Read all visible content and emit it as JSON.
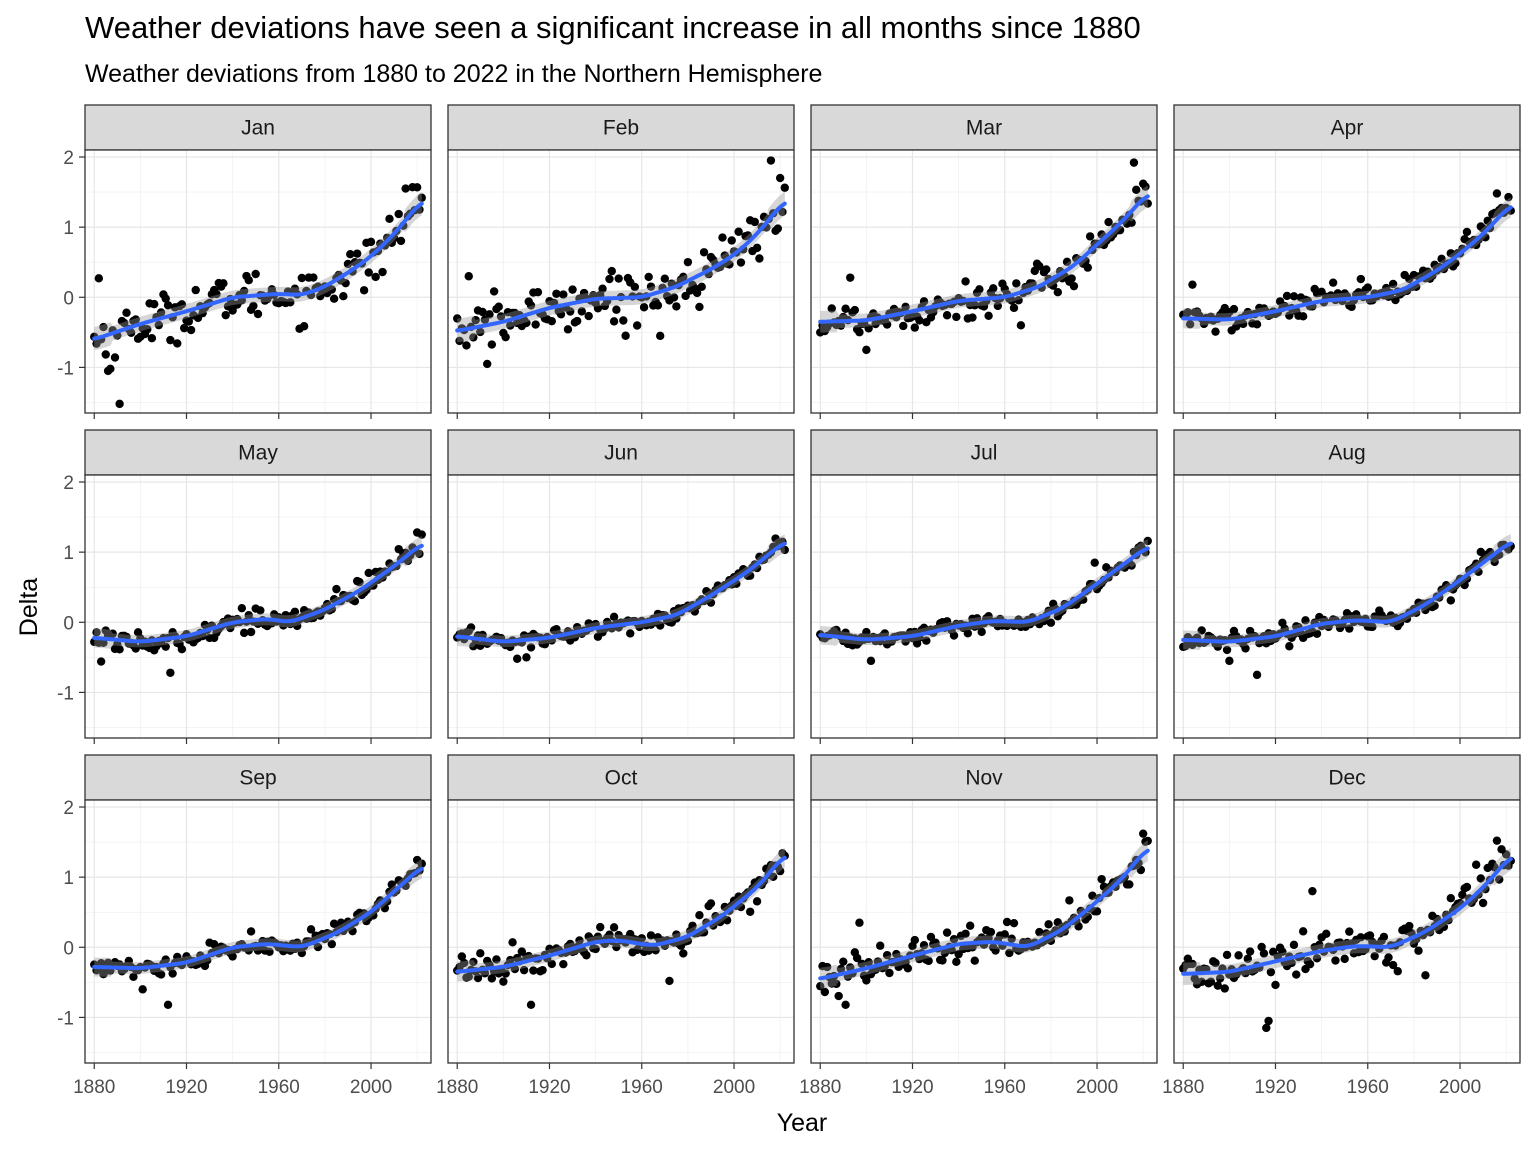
{
  "chart_data": {
    "type": "scatter",
    "title": "Weather deviations have seen a significant increase in all months since 1880",
    "subtitle": "Weather deviations from 1880 to 2022 in the Northern Hemisphere",
    "xlabel": "Year",
    "ylabel": "Delta",
    "xlim": [
      1876,
      2026
    ],
    "ylim": [
      -1.65,
      2.1
    ],
    "x_ticks": [
      1880,
      1920,
      1960,
      2000
    ],
    "y_ticks": [
      -1,
      0,
      1,
      2
    ],
    "grid": true,
    "point_color": "#000000",
    "trend_color": "#3366ff",
    "band_color": "#999999",
    "strip_fill": "#d9d9d9",
    "year_start": 1880,
    "year_end": 2022,
    "panels": [
      {
        "month": "Jan",
        "trend": [
          [
            1880,
            -0.6
          ],
          [
            1900,
            -0.38
          ],
          [
            1920,
            -0.2
          ],
          [
            1940,
            0.0
          ],
          [
            1960,
            0.05
          ],
          [
            1970,
            0.03
          ],
          [
            1980,
            0.15
          ],
          [
            1990,
            0.35
          ],
          [
            2000,
            0.58
          ],
          [
            2010,
            0.9
          ],
          [
            2022,
            1.38
          ]
        ],
        "noise": 0.28,
        "outliers": [
          [
            1891,
            -1.52
          ],
          [
            1886,
            -1.05
          ],
          [
            1887,
            -1.02
          ],
          [
            1882,
            0.27
          ],
          [
            2015,
            1.55
          ],
          [
            2018,
            1.57
          ],
          [
            1997,
            0.1
          ],
          [
            2005,
            0.36
          ]
        ]
      },
      {
        "month": "Feb",
        "trend": [
          [
            1880,
            -0.48
          ],
          [
            1900,
            -0.35
          ],
          [
            1920,
            -0.15
          ],
          [
            1940,
            -0.02
          ],
          [
            1960,
            0.0
          ],
          [
            1975,
            0.15
          ],
          [
            1990,
            0.4
          ],
          [
            2000,
            0.6
          ],
          [
            2010,
            0.9
          ],
          [
            2022,
            1.38
          ]
        ],
        "noise": 0.3,
        "outliers": [
          [
            2016,
            1.95
          ],
          [
            2020,
            1.7
          ],
          [
            2019,
            0.98
          ],
          [
            1893,
            -0.95
          ],
          [
            1885,
            0.3
          ],
          [
            1968,
            -0.55
          ]
        ]
      },
      {
        "month": "Mar",
        "trend": [
          [
            1880,
            -0.35
          ],
          [
            1900,
            -0.33
          ],
          [
            1920,
            -0.2
          ],
          [
            1940,
            -0.05
          ],
          [
            1960,
            0.0
          ],
          [
            1975,
            0.15
          ],
          [
            1990,
            0.45
          ],
          [
            2000,
            0.75
          ],
          [
            2010,
            1.05
          ],
          [
            2022,
            1.48
          ]
        ],
        "noise": 0.22,
        "outliers": [
          [
            2016,
            1.92
          ],
          [
            2020,
            1.62
          ],
          [
            1893,
            0.28
          ],
          [
            1900,
            -0.75
          ],
          [
            1967,
            -0.4
          ]
        ]
      },
      {
        "month": "Apr",
        "trend": [
          [
            1880,
            -0.3
          ],
          [
            1900,
            -0.32
          ],
          [
            1920,
            -0.2
          ],
          [
            1940,
            -0.05
          ],
          [
            1960,
            0.0
          ],
          [
            1975,
            0.1
          ],
          [
            1990,
            0.38
          ],
          [
            2000,
            0.62
          ],
          [
            2010,
            0.9
          ],
          [
            2022,
            1.32
          ]
        ],
        "noise": 0.16,
        "outliers": [
          [
            2016,
            1.48
          ],
          [
            1884,
            0.18
          ]
        ]
      },
      {
        "month": "May",
        "trend": [
          [
            1880,
            -0.22
          ],
          [
            1900,
            -0.28
          ],
          [
            1920,
            -0.2
          ],
          [
            1940,
            0.0
          ],
          [
            1955,
            0.05
          ],
          [
            1965,
            0.0
          ],
          [
            1980,
            0.18
          ],
          [
            1995,
            0.45
          ],
          [
            2010,
            0.8
          ],
          [
            2022,
            1.12
          ]
        ],
        "noise": 0.13,
        "outliers": [
          [
            1913,
            -0.72
          ],
          [
            2020,
            1.28
          ],
          [
            1883,
            -0.56
          ]
        ]
      },
      {
        "month": "Jun",
        "trend": [
          [
            1880,
            -0.2
          ],
          [
            1900,
            -0.28
          ],
          [
            1920,
            -0.22
          ],
          [
            1940,
            -0.08
          ],
          [
            1960,
            0.0
          ],
          [
            1975,
            0.1
          ],
          [
            1990,
            0.38
          ],
          [
            2005,
            0.7
          ],
          [
            2022,
            1.15
          ]
        ],
        "noise": 0.1,
        "outliers": [
          [
            1906,
            -0.52
          ],
          [
            1910,
            -0.5
          ]
        ]
      },
      {
        "month": "Jul",
        "trend": [
          [
            1880,
            -0.18
          ],
          [
            1900,
            -0.25
          ],
          [
            1920,
            -0.2
          ],
          [
            1940,
            -0.05
          ],
          [
            1955,
            0.02
          ],
          [
            1970,
            0.0
          ],
          [
            1985,
            0.2
          ],
          [
            2000,
            0.55
          ],
          [
            2022,
            1.08
          ]
        ],
        "noise": 0.1,
        "outliers": [
          [
            1902,
            -0.55
          ],
          [
            1999,
            0.85
          ]
        ]
      },
      {
        "month": "Aug",
        "trend": [
          [
            1880,
            -0.25
          ],
          [
            1900,
            -0.28
          ],
          [
            1920,
            -0.2
          ],
          [
            1940,
            -0.02
          ],
          [
            1955,
            0.03
          ],
          [
            1970,
            0.0
          ],
          [
            1985,
            0.25
          ],
          [
            2000,
            0.6
          ],
          [
            2022,
            1.15
          ]
        ],
        "noise": 0.12,
        "outliers": [
          [
            1912,
            -0.75
          ],
          [
            1900,
            -0.55
          ]
        ]
      },
      {
        "month": "Sep",
        "trend": [
          [
            1880,
            -0.28
          ],
          [
            1900,
            -0.3
          ],
          [
            1920,
            -0.22
          ],
          [
            1940,
            0.0
          ],
          [
            1955,
            0.05
          ],
          [
            1970,
            0.0
          ],
          [
            1985,
            0.2
          ],
          [
            2000,
            0.5
          ],
          [
            2022,
            1.15
          ]
        ],
        "noise": 0.12,
        "outliers": [
          [
            1912,
            -0.82
          ],
          [
            1901,
            -0.6
          ]
        ]
      },
      {
        "month": "Oct",
        "trend": [
          [
            1880,
            -0.35
          ],
          [
            1900,
            -0.28
          ],
          [
            1920,
            -0.12
          ],
          [
            1940,
            0.08
          ],
          [
            1950,
            0.1
          ],
          [
            1965,
            0.02
          ],
          [
            1980,
            0.15
          ],
          [
            1995,
            0.45
          ],
          [
            2010,
            0.85
          ],
          [
            2022,
            1.32
          ]
        ],
        "noise": 0.16,
        "outliers": [
          [
            1912,
            -0.82
          ],
          [
            1972,
            -0.48
          ]
        ]
      },
      {
        "month": "Nov",
        "trend": [
          [
            1880,
            -0.45
          ],
          [
            1900,
            -0.3
          ],
          [
            1920,
            -0.12
          ],
          [
            1940,
            0.05
          ],
          [
            1955,
            0.08
          ],
          [
            1970,
            0.0
          ],
          [
            1985,
            0.25
          ],
          [
            2000,
            0.65
          ],
          [
            2010,
            0.95
          ],
          [
            2022,
            1.42
          ]
        ],
        "noise": 0.2,
        "outliers": [
          [
            2020,
            1.62
          ],
          [
            1891,
            -0.82
          ],
          [
            1897,
            0.35
          ]
        ]
      },
      {
        "month": "Dec",
        "trend": [
          [
            1880,
            -0.38
          ],
          [
            1900,
            -0.35
          ],
          [
            1920,
            -0.2
          ],
          [
            1940,
            -0.05
          ],
          [
            1955,
            0.02
          ],
          [
            1970,
            0.0
          ],
          [
            1985,
            0.22
          ],
          [
            2000,
            0.55
          ],
          [
            2010,
            0.85
          ],
          [
            2022,
            1.3
          ]
        ],
        "noise": 0.25,
        "outliers": [
          [
            1916,
            -1.15
          ],
          [
            1917,
            -1.05
          ],
          [
            1936,
            0.8
          ],
          [
            2016,
            1.52
          ],
          [
            1985,
            -0.4
          ]
        ]
      }
    ]
  }
}
